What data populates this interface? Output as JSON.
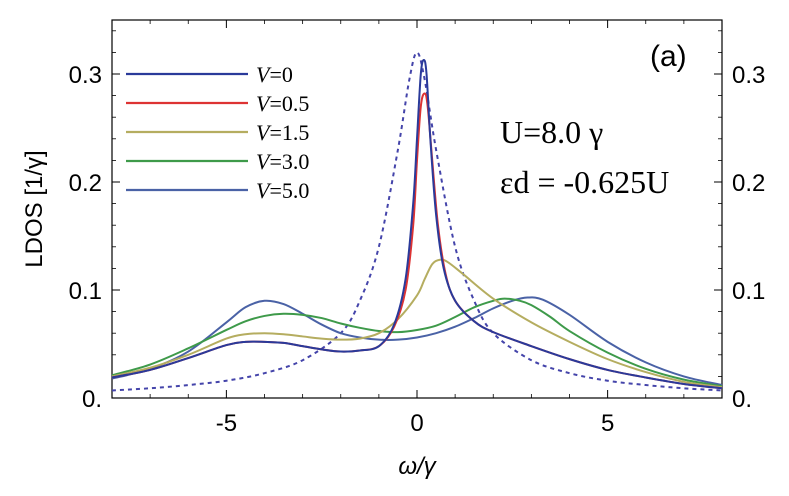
{
  "chart_data": {
    "type": "line",
    "title": "",
    "panel_label": "(a)",
    "xlabel": "ω/γ",
    "ylabel": "LDOS [1/γ]",
    "xlim": [
      -8,
      8
    ],
    "ylim": [
      0,
      0.35
    ],
    "x_ticks": [
      -5,
      0,
      5
    ],
    "x_tick_labels": [
      "-5",
      "0",
      "5"
    ],
    "y_ticks": [
      0,
      0.1,
      0.2,
      0.3
    ],
    "y_tick_labels": [
      "0.",
      "0.1",
      "0.2",
      "0.3"
    ],
    "grid": false,
    "legend_position": "top-left",
    "annotations": [
      "U=8.0 γ",
      "εd = -0.625U"
    ],
    "series": [
      {
        "name": "V=0",
        "color": "#2a3a9a",
        "style": "solid",
        "points": [
          [
            -8,
            0.019
          ],
          [
            -7,
            0.026
          ],
          [
            -6,
            0.037
          ],
          [
            -5,
            0.049
          ],
          [
            -4.5,
            0.052
          ],
          [
            -4,
            0.052
          ],
          [
            -3.5,
            0.051
          ],
          [
            -3,
            0.048
          ],
          [
            -2.5,
            0.045
          ],
          [
            -2,
            0.043
          ],
          [
            -1.5,
            0.044
          ],
          [
            -1,
            0.048
          ],
          [
            -0.6,
            0.068
          ],
          [
            -0.3,
            0.11
          ],
          [
            -0.1,
            0.18
          ],
          [
            0,
            0.24
          ],
          [
            0.1,
            0.3
          ],
          [
            0.18,
            0.313
          ],
          [
            0.25,
            0.3
          ],
          [
            0.35,
            0.24
          ],
          [
            0.5,
            0.17
          ],
          [
            0.7,
            0.12
          ],
          [
            1,
            0.09
          ],
          [
            1.5,
            0.071
          ],
          [
            2,
            0.061
          ],
          [
            3,
            0.048
          ],
          [
            4,
            0.036
          ],
          [
            5,
            0.026
          ],
          [
            6,
            0.019
          ],
          [
            7,
            0.013
          ],
          [
            8,
            0.009
          ]
        ]
      },
      {
        "name": "V=0.5",
        "color": "#dd3333",
        "style": "solid",
        "points": [
          [
            -8,
            0.019
          ],
          [
            -7,
            0.026
          ],
          [
            -6,
            0.037
          ],
          [
            -5,
            0.049
          ],
          [
            -4.5,
            0.052
          ],
          [
            -4,
            0.052
          ],
          [
            -3.5,
            0.051
          ],
          [
            -3,
            0.048
          ],
          [
            -2.5,
            0.045
          ],
          [
            -2,
            0.043
          ],
          [
            -1.5,
            0.044
          ],
          [
            -1,
            0.048
          ],
          [
            -0.6,
            0.066
          ],
          [
            -0.3,
            0.1
          ],
          [
            -0.1,
            0.16
          ],
          [
            0,
            0.22
          ],
          [
            0.1,
            0.27
          ],
          [
            0.2,
            0.282
          ],
          [
            0.28,
            0.27
          ],
          [
            0.4,
            0.22
          ],
          [
            0.55,
            0.16
          ],
          [
            0.75,
            0.115
          ],
          [
            1,
            0.09
          ],
          [
            1.5,
            0.071
          ],
          [
            2,
            0.061
          ],
          [
            3,
            0.048
          ],
          [
            4,
            0.036
          ],
          [
            5,
            0.026
          ],
          [
            6,
            0.019
          ],
          [
            7,
            0.013
          ],
          [
            8,
            0.009
          ]
        ]
      },
      {
        "name": "V=1.5",
        "color": "#b5ad60",
        "style": "solid",
        "points": [
          [
            -8,
            0.02
          ],
          [
            -7,
            0.028
          ],
          [
            -6,
            0.04
          ],
          [
            -5,
            0.055
          ],
          [
            -4.5,
            0.059
          ],
          [
            -4,
            0.06
          ],
          [
            -3.5,
            0.059
          ],
          [
            -3,
            0.057
          ],
          [
            -2.5,
            0.055
          ],
          [
            -2,
            0.054
          ],
          [
            -1.5,
            0.055
          ],
          [
            -1,
            0.06
          ],
          [
            -0.5,
            0.073
          ],
          [
            0,
            0.095
          ],
          [
            0.2,
            0.11
          ],
          [
            0.4,
            0.124
          ],
          [
            0.6,
            0.128
          ],
          [
            0.8,
            0.126
          ],
          [
            1.2,
            0.115
          ],
          [
            2,
            0.092
          ],
          [
            3,
            0.07
          ],
          [
            4,
            0.052
          ],
          [
            5,
            0.036
          ],
          [
            6,
            0.024
          ],
          [
            7,
            0.015
          ],
          [
            8,
            0.01
          ]
        ]
      },
      {
        "name": "V=3.0",
        "color": "#3e9a4a",
        "style": "solid",
        "points": [
          [
            -8,
            0.021
          ],
          [
            -7,
            0.031
          ],
          [
            -6,
            0.046
          ],
          [
            -5,
            0.063
          ],
          [
            -4.5,
            0.071
          ],
          [
            -4,
            0.076
          ],
          [
            -3.5,
            0.078
          ],
          [
            -3,
            0.077
          ],
          [
            -2.5,
            0.074
          ],
          [
            -2,
            0.069
          ],
          [
            -1.5,
            0.065
          ],
          [
            -1,
            0.062
          ],
          [
            -0.5,
            0.061
          ],
          [
            0,
            0.063
          ],
          [
            0.5,
            0.067
          ],
          [
            1,
            0.075
          ],
          [
            1.5,
            0.084
          ],
          [
            2,
            0.09
          ],
          [
            2.3,
            0.092
          ],
          [
            2.7,
            0.09
          ],
          [
            3,
            0.086
          ],
          [
            3.5,
            0.075
          ],
          [
            4,
            0.062
          ],
          [
            5,
            0.042
          ],
          [
            6,
            0.027
          ],
          [
            7,
            0.017
          ],
          [
            8,
            0.011
          ]
        ]
      },
      {
        "name": "V=5.0",
        "color": "#4a62a6",
        "style": "solid",
        "points": [
          [
            -8,
            0.018
          ],
          [
            -7,
            0.027
          ],
          [
            -6,
            0.043
          ],
          [
            -5,
            0.07
          ],
          [
            -4.5,
            0.084
          ],
          [
            -4,
            0.09
          ],
          [
            -3.5,
            0.087
          ],
          [
            -3,
            0.078
          ],
          [
            -2.5,
            0.068
          ],
          [
            -2,
            0.06
          ],
          [
            -1.5,
            0.056
          ],
          [
            -1,
            0.054
          ],
          [
            -0.5,
            0.054
          ],
          [
            0,
            0.056
          ],
          [
            0.5,
            0.06
          ],
          [
            1,
            0.066
          ],
          [
            1.5,
            0.074
          ],
          [
            2,
            0.083
          ],
          [
            2.5,
            0.09
          ],
          [
            2.9,
            0.093
          ],
          [
            3.3,
            0.091
          ],
          [
            4,
            0.077
          ],
          [
            5,
            0.052
          ],
          [
            6,
            0.033
          ],
          [
            7,
            0.02
          ],
          [
            8,
            0.012
          ]
        ]
      },
      {
        "name": "",
        "color": "#4444aa",
        "style": "dotted",
        "points": [
          [
            -8,
            0.007
          ],
          [
            -7,
            0.009
          ],
          [
            -6,
            0.012
          ],
          [
            -5,
            0.016
          ],
          [
            -4,
            0.023
          ],
          [
            -3,
            0.035
          ],
          [
            -2,
            0.06
          ],
          [
            -1.5,
            0.09
          ],
          [
            -1,
            0.14
          ],
          [
            -0.5,
            0.23
          ],
          [
            -0.2,
            0.295
          ],
          [
            0,
            0.32
          ],
          [
            0.2,
            0.295
          ],
          [
            0.5,
            0.23
          ],
          [
            1,
            0.14
          ],
          [
            1.5,
            0.09
          ],
          [
            2,
            0.06
          ],
          [
            3,
            0.035
          ],
          [
            4,
            0.023
          ],
          [
            5,
            0.016
          ],
          [
            6,
            0.012
          ],
          [
            7,
            0.009
          ],
          [
            8,
            0.007
          ]
        ]
      }
    ]
  }
}
